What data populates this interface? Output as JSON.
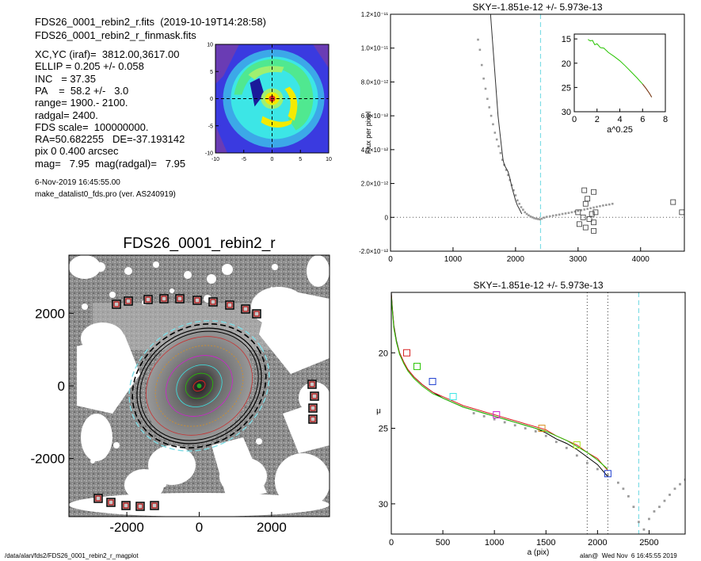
{
  "header": {
    "lines": [
      "FDS26_0001_rebin2_r.fits  (2019-10-19T14:28:58)",
      "FDS26_0001_rebin2_r_finmask.fits"
    ],
    "params": [
      "XC,YC (iraf)=  3812.00,3617.00",
      "ELLIP = 0.205 +/- 0.058",
      "INC   = 37.35",
      "PA    =  58.2 +/-   3.0",
      "range= 1900.- 2100.",
      "radgal= 2400.",
      "FDS scale=  100000000.",
      "RA=50.682255   DE=-37.193142",
      "pix 0 0.400 arcsec",
      "mag=   7.95  mag(radgal)=   7.95"
    ],
    "date": "6-Nov-2019 16:45:55.00",
    "program": "make_datalist0_fds.pro (ver. AS240919)"
  },
  "footer": {
    "left": "/data/alan/fds2/FDS26_0001_rebin2_r_magplot",
    "right": "alan@  Wed Nov  6 16:45:55 2019"
  },
  "colors": {
    "residual_green": "#27c400",
    "map_yellow": "#f4ea00",
    "map_cyan": "#3ce6e6",
    "map_blue": "#3a3ae0",
    "map_purple": "#6a3cb4",
    "dashed_cyan": "#7fdde6",
    "sky_gray": "#9a9a9a"
  },
  "chart_data": [
    {
      "type": "heatmap",
      "id": "residual_map",
      "xticks": [
        "-10",
        "-5",
        "0",
        "5",
        "10"
      ],
      "yticks": [
        "10",
        "5",
        "0",
        "-5",
        "-10"
      ],
      "xlim": [
        -10,
        10
      ],
      "ylim": [
        -10,
        10
      ]
    },
    {
      "type": "image",
      "id": "galaxy_image",
      "title": "FDS26_0001_rebin2_r",
      "xticks": [
        "-2000",
        "0",
        "2000"
      ],
      "yticks": [
        "2000",
        "0",
        "-2000"
      ],
      "xlim": [
        -3600,
        3600
      ],
      "ylim": [
        -3600,
        3600
      ]
    },
    {
      "type": "scatter",
      "id": "flux_profile",
      "title": "SKY=-1.851e-12 +/- 5.973e-13",
      "ylabel": "Flux per pixel",
      "xlim": [
        0,
        4700
      ],
      "ylim": [
        -2e-12,
        1.2e-11
      ],
      "xticks": [
        "0",
        "1000",
        "2000",
        "3000",
        "4000"
      ],
      "yticks": [
        "-2.0×10⁻¹²",
        "0",
        "2.0×10⁻¹²",
        "4.0×10⁻¹²",
        "6.0×10⁻¹²",
        "8.0×10⁻¹²",
        "1.0×10⁻¹¹",
        "1.2×10⁻¹¹"
      ],
      "ytick_values": [
        -2e-12,
        0,
        2e-12,
        4e-12,
        6e-12,
        8e-12,
        1e-11,
        1.2e-11
      ],
      "radgal": 2400,
      "gray_points": [
        [
          1400,
          1.05e-11
        ],
        [
          1430,
          9.9e-12
        ],
        [
          1460,
          9e-12
        ],
        [
          1490,
          8.2e-12
        ],
        [
          1520,
          7.6e-12
        ],
        [
          1550,
          7e-12
        ],
        [
          1580,
          6.5e-12
        ],
        [
          1610,
          6e-12
        ],
        [
          1640,
          5.5e-12
        ],
        [
          1670,
          5e-12
        ],
        [
          1700,
          4.6e-12
        ],
        [
          1730,
          4.2e-12
        ],
        [
          1760,
          3.8e-12
        ],
        [
          1790,
          3.4e-12
        ],
        [
          1820,
          3.1e-12
        ],
        [
          1850,
          2.8e-12
        ],
        [
          1880,
          2.5e-12
        ],
        [
          1910,
          2.2e-12
        ],
        [
          1940,
          1.9e-12
        ],
        [
          1970,
          1.6e-12
        ],
        [
          2000,
          1.3e-12
        ],
        [
          2030,
          1e-12
        ],
        [
          2060,
          8e-13
        ],
        [
          2090,
          6e-13
        ],
        [
          2120,
          4.5e-13
        ],
        [
          2150,
          3e-13
        ],
        [
          2180,
          2e-13
        ],
        [
          2210,
          1.2e-13
        ],
        [
          2240,
          5e-14
        ],
        [
          2270,
          0
        ],
        [
          2300,
          -5e-14
        ],
        [
          2330,
          -8e-14
        ],
        [
          2360,
          -1e-13
        ],
        [
          2390,
          -1.2e-13
        ],
        [
          2420,
          -8e-14
        ],
        [
          2460,
          -2e-14
        ],
        [
          2500,
          3e-14
        ],
        [
          2550,
          6e-14
        ],
        [
          2600,
          1e-13
        ],
        [
          2650,
          1.3e-13
        ],
        [
          2700,
          1.6e-13
        ],
        [
          2750,
          2e-13
        ],
        [
          2800,
          2.3e-13
        ],
        [
          2850,
          2.6e-13
        ],
        [
          2900,
          3e-13
        ],
        [
          2950,
          3.4e-13
        ],
        [
          3000,
          3.8e-13
        ],
        [
          3050,
          4.2e-13
        ],
        [
          3100,
          4.6e-13
        ],
        [
          3150,
          5e-13
        ],
        [
          3200,
          5.4e-13
        ],
        [
          3250,
          5.8e-13
        ],
        [
          3300,
          6.2e-13
        ],
        [
          3350,
          6.6e-13
        ],
        [
          3400,
          7e-13
        ],
        [
          3450,
          7.3e-13
        ],
        [
          3500,
          7.6e-13
        ],
        [
          3550,
          8e-13
        ]
      ],
      "line_points": [
        [
          1600,
          1.2e-11
        ],
        [
          1640,
          1e-11
        ],
        [
          1680,
          8e-12
        ],
        [
          1700,
          7e-12
        ],
        [
          1720,
          6e-12
        ],
        [
          1750,
          5e-12
        ],
        [
          1780,
          4e-12
        ],
        [
          1800,
          3.4e-12
        ],
        [
          1820,
          3.1e-12
        ],
        [
          1850,
          2.9e-12
        ],
        [
          1880,
          2.7e-12
        ],
        [
          1910,
          2.3e-12
        ],
        [
          1940,
          1.8e-12
        ],
        [
          1970,
          1.4e-12
        ],
        [
          2000,
          1e-12
        ],
        [
          2030,
          7e-13
        ],
        [
          2060,
          5e-13
        ],
        [
          2100,
          2e-13
        ]
      ],
      "square_points": [
        [
          3100,
          1.6e-12
        ],
        [
          3250,
          1.5e-12
        ],
        [
          3150,
          1.1e-12
        ],
        [
          3120,
          8e-13
        ],
        [
          3000,
          3e-13
        ],
        [
          3280,
          3e-13
        ],
        [
          3220,
          2e-13
        ],
        [
          3080,
          0
        ],
        [
          3180,
          -1e-13
        ],
        [
          3250,
          -3e-13
        ],
        [
          3020,
          -4e-13
        ],
        [
          3120,
          -6e-13
        ],
        [
          3250,
          -8e-13
        ],
        [
          4520,
          9e-13
        ],
        [
          4660,
          3e-13
        ]
      ]
    },
    {
      "type": "line",
      "id": "inset_profile",
      "xlabel": "a^0.25",
      "xlim": [
        0,
        8
      ],
      "ylim": [
        30,
        14
      ],
      "xticks": [
        "0",
        "2",
        "4",
        "6",
        "8"
      ],
      "yticks": [
        "15",
        "20",
        "25",
        "30"
      ],
      "x": [
        1.2,
        1.4,
        1.6,
        1.8,
        2.0,
        2.3,
        2.6,
        3.0,
        3.5,
        4.0,
        4.5,
        5.0,
        5.5,
        6.0,
        6.3,
        6.6,
        6.8
      ],
      "y": [
        15.1,
        15.4,
        15.3,
        16.2,
        16.0,
        16.8,
        16.9,
        17.8,
        18.6,
        19.5,
        20.6,
        21.8,
        23.0,
        24.3,
        25.2,
        26.2,
        27.0
      ]
    },
    {
      "type": "line",
      "id": "mu_profile",
      "title": "SKY=-1.851e-12 +/- 5.973e-13",
      "xlabel": "a (pix)",
      "ylabel": "μ",
      "xlim": [
        0,
        2850
      ],
      "ylim": [
        32,
        16
      ],
      "xticks": [
        "0",
        "500",
        "1000",
        "1500",
        "2000",
        "2500"
      ],
      "yticks": [
        "20",
        "25",
        "30"
      ],
      "ytick_values": [
        20,
        25,
        30
      ],
      "range_lines": [
        1900,
        2100
      ],
      "radgal": 2400,
      "series": [
        {
          "color": "#000000",
          "x": [
            0,
            10,
            25,
            50,
            80,
            120,
            160,
            220,
            300,
            400,
            500,
            600,
            700,
            800,
            900,
            1000,
            1100,
            1200,
            1300,
            1400,
            1500,
            1600,
            1700,
            1800,
            1900,
            2000,
            2050,
            2100
          ],
          "y": [
            16.0,
            17.0,
            18.2,
            19.2,
            20.0,
            20.6,
            21.1,
            21.6,
            22.1,
            22.6,
            23.0,
            23.3,
            23.6,
            23.8,
            24.0,
            24.2,
            24.4,
            24.6,
            24.8,
            25.0,
            25.3,
            25.7,
            26.0,
            26.4,
            26.9,
            27.4,
            27.8,
            28.2
          ]
        },
        {
          "color": "#d82020",
          "x": [
            0,
            10,
            25,
            50,
            80,
            120,
            160,
            220,
            300,
            400,
            500,
            600,
            700,
            800,
            900,
            1000,
            1100,
            1200,
            1300,
            1400,
            1500,
            1600,
            1700,
            1800,
            1900,
            2000,
            2050,
            2100
          ],
          "y": [
            16.1,
            17.1,
            18.3,
            19.3,
            20.0,
            20.6,
            21.1,
            21.6,
            22.1,
            22.6,
            22.9,
            23.2,
            23.5,
            23.7,
            23.9,
            24.1,
            24.3,
            24.5,
            24.7,
            24.9,
            25.1,
            25.5,
            25.8,
            26.1,
            26.6,
            27.0,
            27.4,
            27.8
          ]
        },
        {
          "color": "#27c400",
          "x": [
            0,
            10,
            25,
            50,
            80,
            120,
            160,
            220,
            300,
            400,
            500,
            600,
            700,
            800,
            900,
            1000,
            1100,
            1200,
            1300,
            1400,
            1500,
            1600,
            1700,
            1800,
            1900,
            2000,
            2050,
            2100
          ],
          "y": [
            16.2,
            17.2,
            18.4,
            19.3,
            20.1,
            20.7,
            21.2,
            21.7,
            22.2,
            22.7,
            23.0,
            23.3,
            23.6,
            23.8,
            24.0,
            24.2,
            24.4,
            24.6,
            24.8,
            25.0,
            25.2,
            25.5,
            25.8,
            26.2,
            26.6,
            27.1,
            27.4,
            27.7
          ]
        }
      ],
      "gray_points": [
        [
          800,
          24.0
        ],
        [
          900,
          24.2
        ],
        [
          1000,
          24.4
        ],
        [
          1100,
          24.6
        ],
        [
          1200,
          24.8
        ],
        [
          1300,
          25.0
        ],
        [
          1400,
          25.2
        ],
        [
          1500,
          25.5
        ],
        [
          1600,
          25.9
        ],
        [
          1700,
          26.3
        ],
        [
          1800,
          26.8
        ],
        [
          1900,
          27.3
        ],
        [
          2000,
          27.7
        ],
        [
          2100,
          28.1
        ],
        [
          2200,
          28.6
        ],
        [
          2250,
          29.0
        ],
        [
          2300,
          29.5
        ],
        [
          2350,
          30.2
        ],
        [
          2400,
          31.2
        ],
        [
          2450,
          31.7
        ],
        [
          2500,
          31.0
        ],
        [
          2550,
          30.5
        ],
        [
          2600,
          30.2
        ],
        [
          2650,
          29.8
        ],
        [
          2700,
          29.4
        ],
        [
          2750,
          29.0
        ],
        [
          2800,
          28.7
        ],
        [
          2850,
          28.4
        ]
      ],
      "markers": [
        {
          "x": 150,
          "y": 20.0,
          "color": "#d82020"
        },
        {
          "x": 250,
          "y": 20.9,
          "color": "#27c400"
        },
        {
          "x": 400,
          "y": 21.9,
          "color": "#2040d0"
        },
        {
          "x": 600,
          "y": 22.9,
          "color": "#3ce6e6"
        },
        {
          "x": 1020,
          "y": 24.1,
          "color": "#d020d0"
        },
        {
          "x": 1460,
          "y": 25.0,
          "color": "#d89020"
        },
        {
          "x": 1800,
          "y": 26.1,
          "color": "#b0e020"
        },
        {
          "x": 2100,
          "y": 28.0,
          "color": "#2040d0"
        }
      ]
    }
  ]
}
